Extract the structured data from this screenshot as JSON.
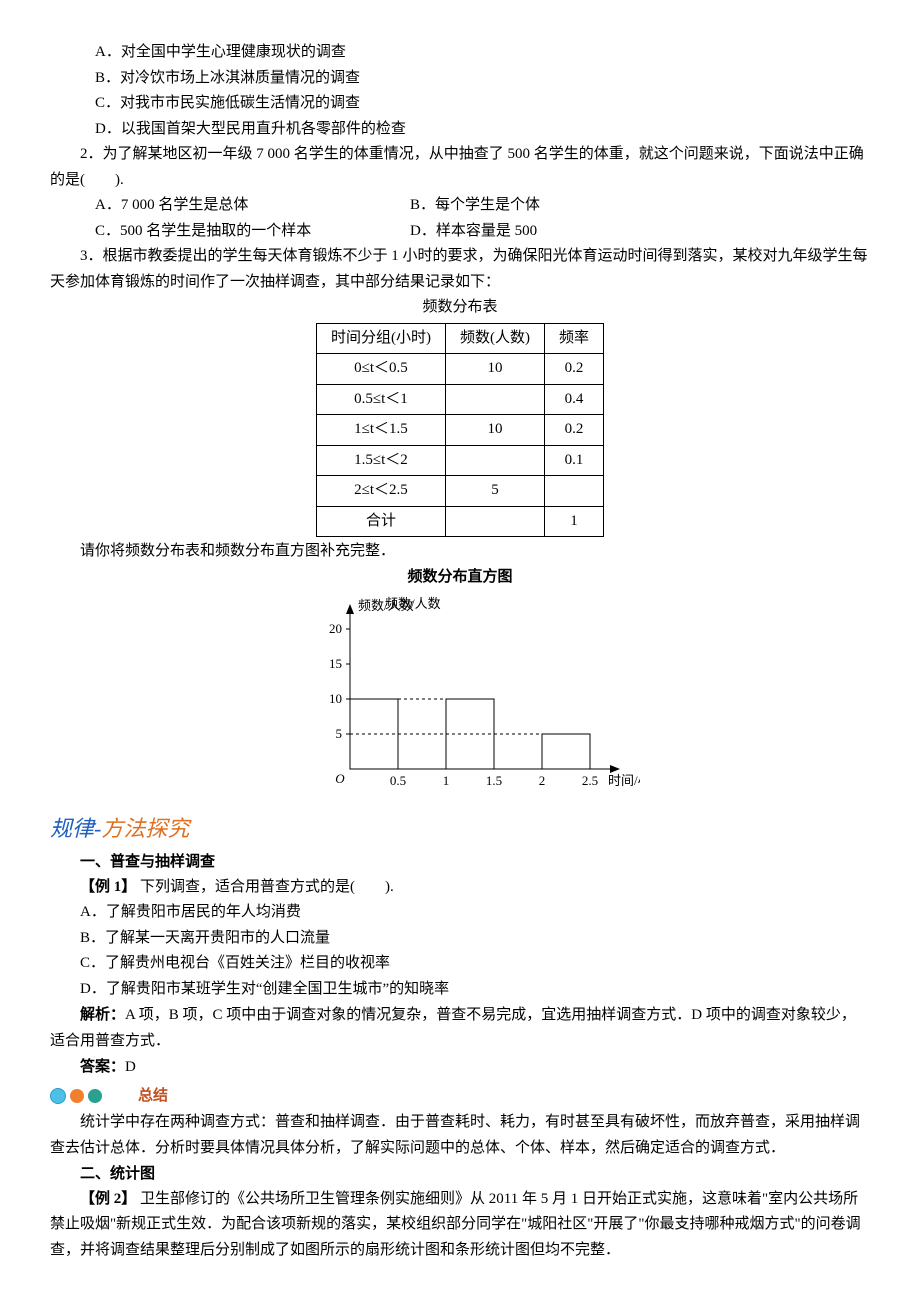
{
  "q1": {
    "optA": "A．对全国中学生心理健康现状的调查",
    "optB": "B．对冷饮市场上冰淇淋质量情况的调查",
    "optC": "C．对我市市民实施低碳生活情况的调查",
    "optD": "D．以我国首架大型民用直升机各零部件的检查"
  },
  "q2": {
    "stem": "2．为了解某地区初一年级 7 000 名学生的体重情况，从中抽查了 500 名学生的体重，就这个问题来说，下面说法中正确的是(　　).",
    "optA": "A．7 000 名学生是总体",
    "optB": "B．每个学生是个体",
    "optC": "C．500 名学生是抽取的一个样本",
    "optD": "D．样本容量是 500"
  },
  "q3": {
    "stem": "3．根据市教委提出的学生每天体育锻炼不少于 1 小时的要求，为确保阳光体育运动时间得到落实，某校对九年级学生每天参加体育锻炼的时间作了一次抽样调查，其中部分结果记录如下：",
    "tableTitle": "频数分布表",
    "headers": [
      "时间分组(小时)",
      "频数(人数)",
      "频率"
    ],
    "rows": [
      [
        "0≤t＜0.5",
        "10",
        "0.2"
      ],
      [
        "0.5≤t＜1",
        "",
        "0.4"
      ],
      [
        "1≤t＜1.5",
        "10",
        "0.2"
      ],
      [
        "1.5≤t＜2",
        "",
        "0.1"
      ],
      [
        "2≤t＜2.5",
        "5",
        ""
      ],
      [
        "合计",
        "",
        "1"
      ]
    ],
    "after": "请你将频数分布表和频数分布直方图补充完整．",
    "histTitle": "频数分布直方图",
    "hist": {
      "ylabel": "频数/人数",
      "xlabel": "时间/小时",
      "yticks": [
        5,
        10,
        15,
        20
      ],
      "xticks": [
        "0.5",
        "1",
        "1.5",
        "2",
        "2.5"
      ],
      "bars": [
        {
          "x0": 0,
          "x1": 0.5,
          "h": 10
        },
        {
          "x0": 1,
          "x1": 1.5,
          "h": 10
        },
        {
          "x0": 2,
          "x1": 2.5,
          "h": 5
        }
      ],
      "axis_color": "#000",
      "bar_fill": "#ffffff",
      "bar_stroke": "#000",
      "grid_dash": "3,3",
      "font_size": 13
    }
  },
  "sectionTitle": {
    "a": "规律",
    "dash": "-",
    "b": "方法探究"
  },
  "sec1": {
    "h": "一、普查与抽样调查",
    "ex": "【例 1】",
    "stem": " 下列调查，适合用普查方式的是(　　).",
    "optA": "A．了解贵阳市居民的年人均消费",
    "optB": "B．了解某一天离开贵阳市的人口流量",
    "optC": "C．了解贵州电视台《百姓关注》栏目的收视率",
    "optD": "D．了解贵阳市某班学生对“创建全国卫生城市”的知晓率",
    "jiexi_label": "解析：",
    "jiexi": "A 项，B 项，C 项中由于调查对象的情况复杂，普查不易完成，宜选用抽样调查方式．D 项中的调查对象较少，适合用普查方式．",
    "ans_label": "答案：",
    "ans": "D",
    "badge": "总结",
    "summary": "统计学中存在两种调查方式：普查和抽样调查．由于普查耗时、耗力，有时甚至具有破坏性，而放弃普查，采用抽样调查去估计总体．分析时要具体情况具体分析，了解实际问题中的总体、个体、样本，然后确定适合的调查方式．"
  },
  "sec2": {
    "h": "二、统计图",
    "ex": "【例 2】",
    "stem": " 卫生部修订的《公共场所卫生管理条例实施细则》从 2011 年 5 月 1 日开始正式实施，这意味着\"室内公共场所禁止吸烟\"新规正式生效．为配合该项新规的落实，某校组织部分同学在\"城阳社区\"开展了\"你最支持哪种戒烟方式\"的问卷调查，并将调查结果整理后分别制成了如图所示的扇形统计图和条形统计图但均不完整．"
  }
}
